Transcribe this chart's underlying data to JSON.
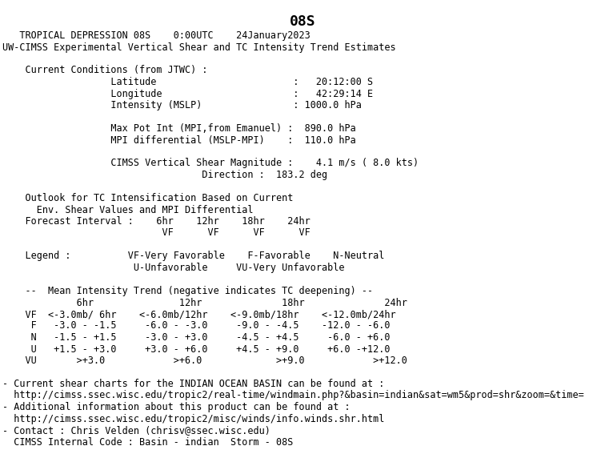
{
  "title": "08S",
  "all_lines": [
    "08S",
    "   TROPICAL DEPRESSION 08S    0:00UTC    24January2023",
    "UW-CIMSS Experimental Vertical Shear and TC Intensity Trend Estimates",
    "",
    "    Current Conditions (from JTWC) :",
    "                   Latitude                        :   20:12:00 S",
    "                   Longitude                       :   42:29:14 E",
    "                   Intensity (MSLP)                : 1000.0 hPa",
    "",
    "                   Max Pot Int (MPI,from Emanuel) :  890.0 hPa",
    "                   MPI differential (MSLP-MPI)    :  110.0 hPa",
    "",
    "                   CIMSS Vertical Shear Magnitude :    4.1 m/s ( 8.0 kts)",
    "                                   Direction :  183.2 deg",
    "",
    "    Outlook for TC Intensification Based on Current",
    "      Env. Shear Values and MPI Differential",
    "    Forecast Interval :    6hr    12hr    18hr    24hr",
    "                            VF      VF      VF      VF",
    "",
    "    Legend :          VF-Very Favorable    F-Favorable    N-Neutral",
    "                       U-Unfavorable     VU-Very Unfavorable",
    "",
    "    --  Mean Intensity Trend (negative indicates TC deepening) --",
    "             6hr               12hr              18hr              24hr",
    "    VF  <-3.0mb/ 6hr    <-6.0mb/12hr    <-9.0mb/18hr    <-12.0mb/24hr",
    "     F   -3.0 - -1.5     -6.0 - -3.0     -9.0 - -4.5    -12.0 - -6.0",
    "     N   -1.5 - +1.5     -3.0 - +3.0     -4.5 - +4.5     -6.0 - +6.0",
    "     U   +1.5 - +3.0     +3.0 - +6.0     +4.5 - +9.0     +6.0 -+12.0",
    "    VU       >+3.0            >+6.0             >+9.0            >+12.0",
    "",
    "- Current shear charts for the INDIAN OCEAN BASIN can be found at :",
    "  http://cimss.ssec.wisc.edu/tropic2/real-time/windmain.php?&basin=indian&sat=wm5&prod=shr&zoom=&time=",
    "- Additional information about this product can be found at :",
    "  http://cimss.ssec.wisc.edu/tropic2/misc/winds/info.winds.shr.html",
    "- Contact : Chris Velden (chrisv@ssec.wisc.edu)",
    "  CIMSS Internal Code : Basin - indian  Storm - 08S"
  ],
  "title_line_idx": 0,
  "font_size": 8.5,
  "title_font_size": 13,
  "bg_color": "#ffffff",
  "text_color": "#000000",
  "fig_width": 7.56,
  "fig_height": 5.77,
  "dpi": 100
}
